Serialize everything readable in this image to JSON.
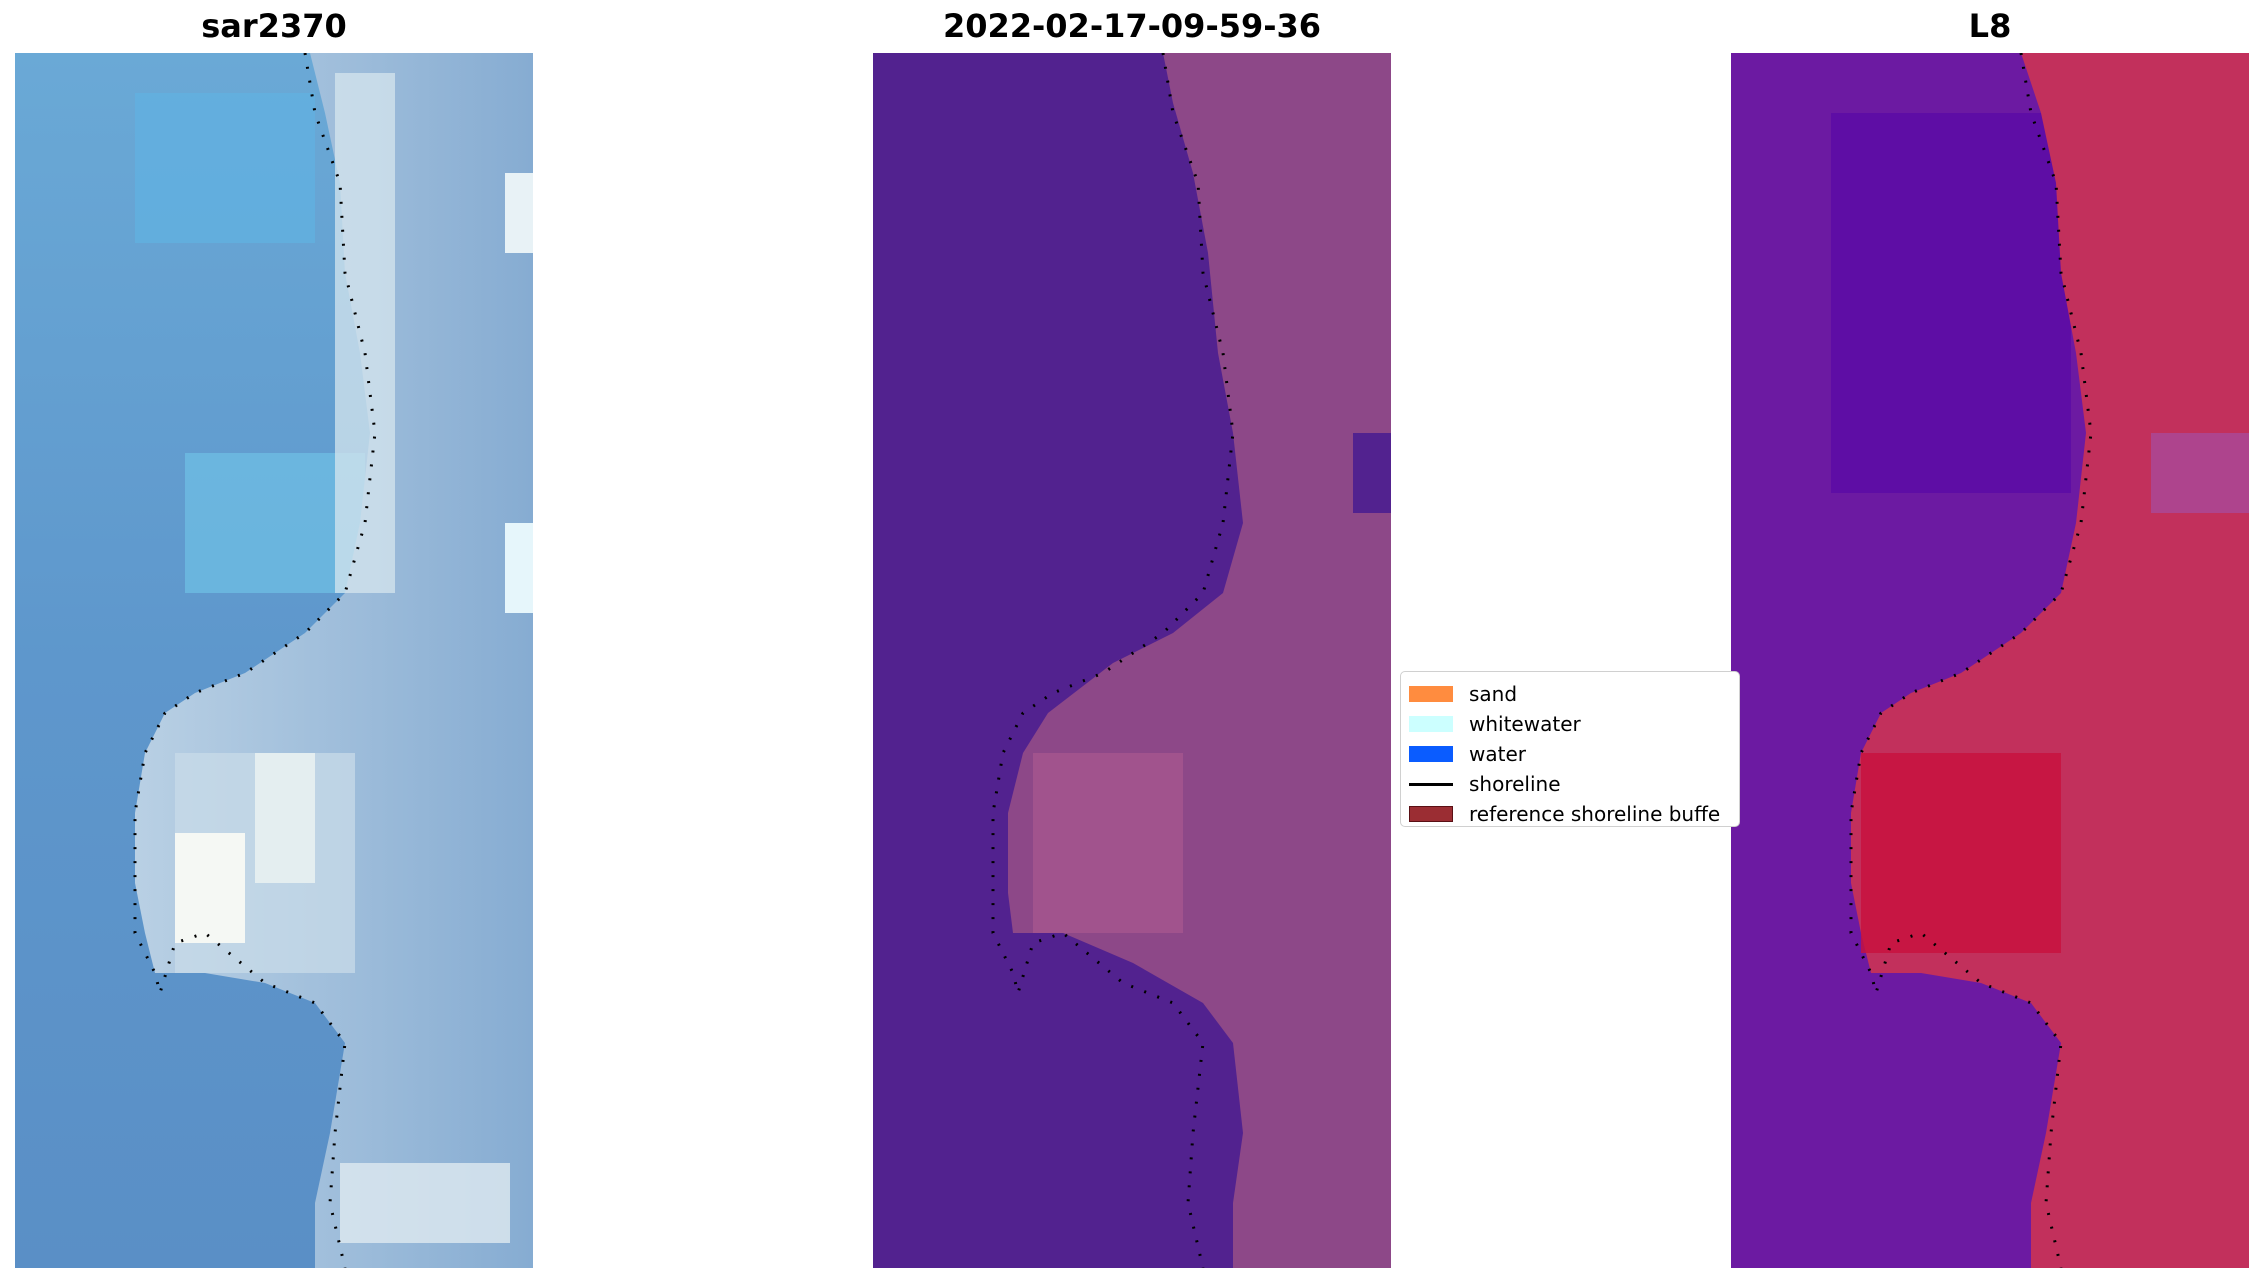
{
  "panels": {
    "sar": {
      "title": "sar2370"
    },
    "classified": {
      "title": "2022-02-17-09-59-36"
    },
    "l8": {
      "title": "L8"
    }
  },
  "legend": {
    "items": [
      {
        "label": "sand",
        "color": "#ff8c3f"
      },
      {
        "label": "whitewater",
        "color": "#ccffff"
      },
      {
        "label": "water",
        "color": "#0a5cff"
      },
      {
        "label": "shoreline",
        "color": "#000000"
      },
      {
        "label": "reference shoreline buffe",
        "color": "#9b2d33"
      }
    ]
  }
}
